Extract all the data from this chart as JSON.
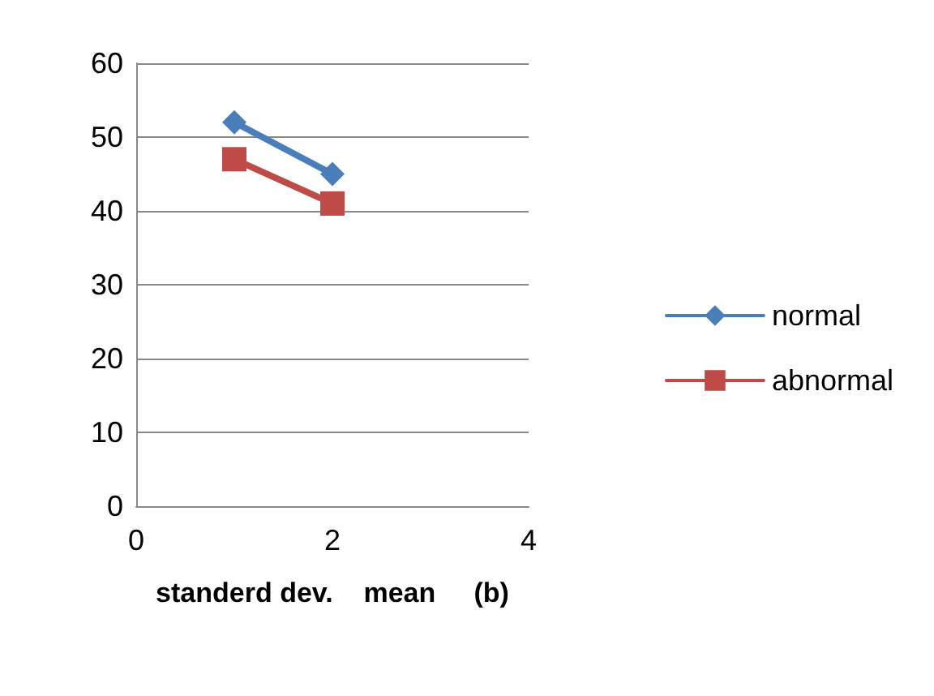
{
  "chart_data": {
    "type": "line",
    "xlabel": "standerd dev.    mean     (b)",
    "x": [
      1,
      2
    ],
    "series": [
      {
        "name": "normal",
        "color": "#4a7ebb",
        "marker": "diamond",
        "values": [
          52,
          45
        ]
      },
      {
        "name": "abnormal",
        "color": "#be4b48",
        "marker": "square",
        "values": [
          47,
          41
        ]
      }
    ],
    "xlim": [
      0,
      4
    ],
    "xticks": [
      0,
      2,
      4
    ],
    "ylim": [
      0,
      60
    ],
    "yticks": [
      0,
      10,
      20,
      30,
      40,
      50,
      60
    ],
    "grid": "y",
    "legend": "right",
    "line_style": "solid"
  }
}
